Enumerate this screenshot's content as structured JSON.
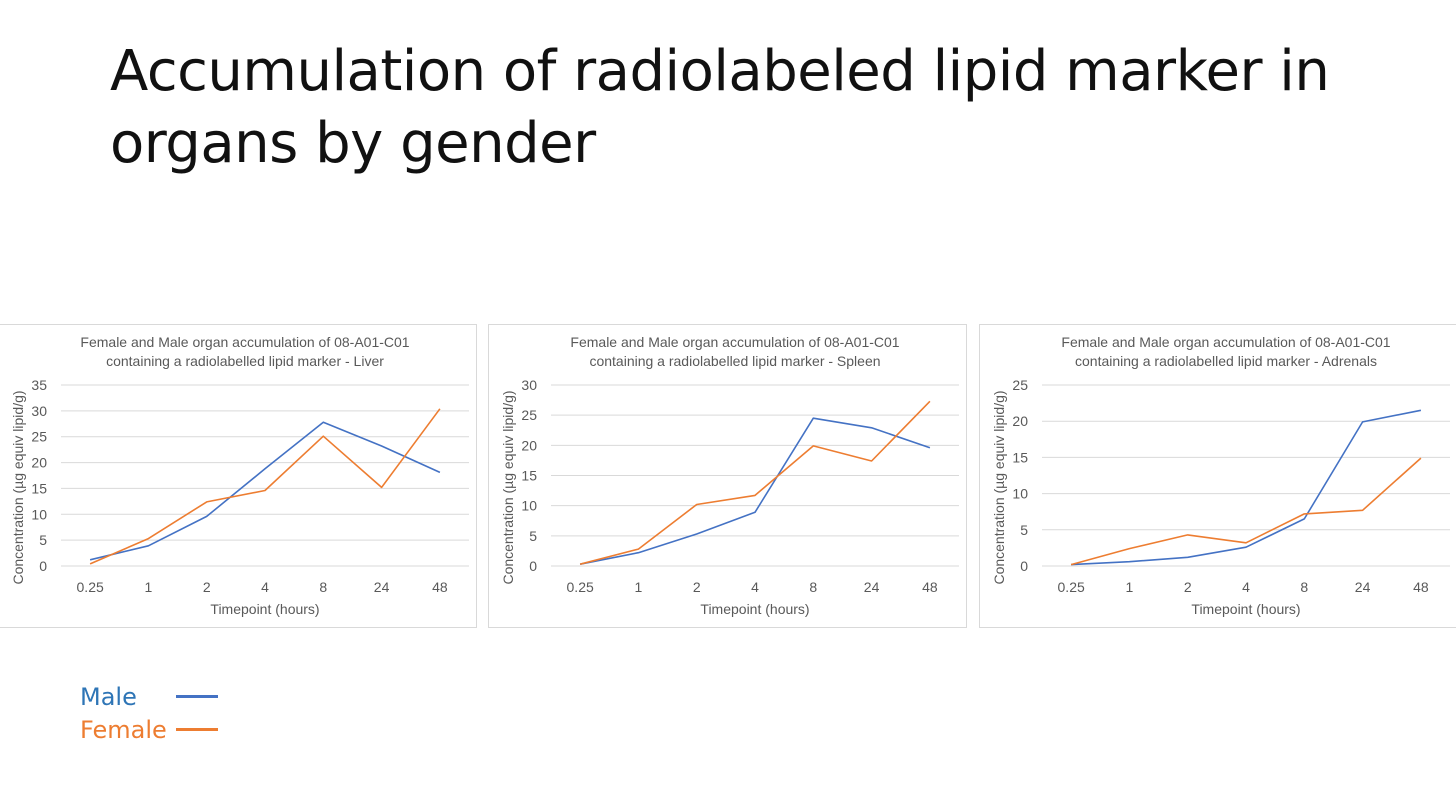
{
  "slide": {
    "title": "Accumulation of radiolabeled lipid marker in organs by gender"
  },
  "legend": {
    "items": [
      {
        "label": "Male",
        "color": "#4472c4",
        "text_color": "#2e75b6"
      },
      {
        "label": "Female",
        "color": "#ed7d31",
        "text_color": "#ed7d31"
      }
    ]
  },
  "chart_data": [
    {
      "type": "line",
      "title": "Female and Male organ accumulation of 08-A01-C01",
      "subtitle": "containing a radiolabelled lipid marker - Liver",
      "xlabel": "Timepoint (hours)",
      "ylabel": "Concentration (µg equiv lipid/g)",
      "categories": [
        "0.25",
        "1",
        "2",
        "4",
        "8",
        "24",
        "48"
      ],
      "ylim": [
        0,
        35
      ],
      "yticks": [
        0,
        5,
        10,
        15,
        20,
        25,
        30,
        35
      ],
      "grid": true,
      "series": [
        {
          "name": "Male",
          "color": "#4472c4",
          "values": [
            1.2,
            3.9,
            9.6,
            18.8,
            27.8,
            23.2,
            18.1
          ]
        },
        {
          "name": "Female",
          "color": "#ed7d31",
          "values": [
            0.4,
            5.3,
            12.4,
            14.6,
            25.1,
            15.2,
            30.4
          ]
        }
      ]
    },
    {
      "type": "line",
      "title": "Female and Male organ accumulation of 08-A01-C01",
      "subtitle": "containing a radiolabelled lipid marker - Spleen",
      "xlabel": "Timepoint (hours)",
      "ylabel": "Concentration (µg equiv lipid/g)",
      "categories": [
        "0.25",
        "1",
        "2",
        "4",
        "8",
        "24",
        "48"
      ],
      "ylim": [
        0,
        30
      ],
      "yticks": [
        0,
        5,
        10,
        15,
        20,
        25,
        30
      ],
      "grid": true,
      "series": [
        {
          "name": "Male",
          "color": "#4472c4",
          "values": [
            0.3,
            2.2,
            5.3,
            8.9,
            24.5,
            22.9,
            19.6
          ]
        },
        {
          "name": "Female",
          "color": "#ed7d31",
          "values": [
            0.3,
            2.8,
            10.2,
            11.7,
            19.9,
            17.4,
            27.3
          ]
        }
      ]
    },
    {
      "type": "line",
      "title": "Female and Male organ accumulation of 08-A01-C01",
      "subtitle": "containing a radiolabelled lipid marker - Adrenals",
      "xlabel": "Timepoint (hours)",
      "ylabel": "Concentration (µg equiv lipid/g)",
      "categories": [
        "0.25",
        "1",
        "2",
        "4",
        "8",
        "24",
        "48"
      ],
      "ylim": [
        0,
        25
      ],
      "yticks": [
        0,
        5,
        10,
        15,
        20,
        25
      ],
      "grid": true,
      "series": [
        {
          "name": "Male",
          "color": "#4472c4",
          "values": [
            0.2,
            0.6,
            1.2,
            2.6,
            6.5,
            19.9,
            21.5
          ]
        },
        {
          "name": "Female",
          "color": "#ed7d31",
          "values": [
            0.2,
            2.4,
            4.3,
            3.2,
            7.2,
            7.7,
            14.9
          ]
        }
      ]
    }
  ]
}
